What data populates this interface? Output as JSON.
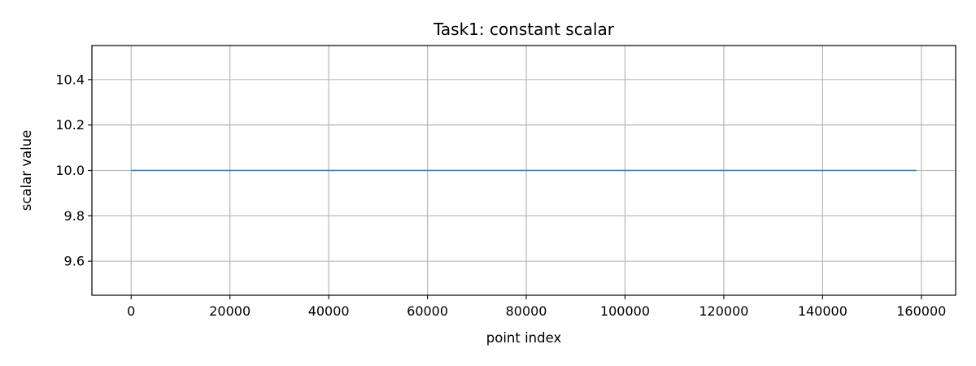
{
  "chart_data": {
    "type": "line",
    "title": "Task1: constant scalar",
    "xlabel": "point index",
    "ylabel": "scalar value",
    "xlim": [
      -7950,
      166950
    ],
    "ylim": [
      9.45,
      10.55
    ],
    "x_ticks": [
      0,
      20000,
      40000,
      60000,
      80000,
      100000,
      120000,
      140000,
      160000
    ],
    "x_tick_labels": [
      "0",
      "20000",
      "40000",
      "60000",
      "80000",
      "100000",
      "120000",
      "140000",
      "160000"
    ],
    "y_ticks": [
      9.6,
      9.8,
      10.0,
      10.2,
      10.4
    ],
    "y_tick_labels": [
      "9.6",
      "9.8",
      "10.0",
      "10.2",
      "10.4"
    ],
    "grid": true,
    "series": [
      {
        "color": "#1f77b4",
        "x": [
          0,
          159000
        ],
        "y": [
          10.0,
          10.0
        ]
      }
    ]
  }
}
